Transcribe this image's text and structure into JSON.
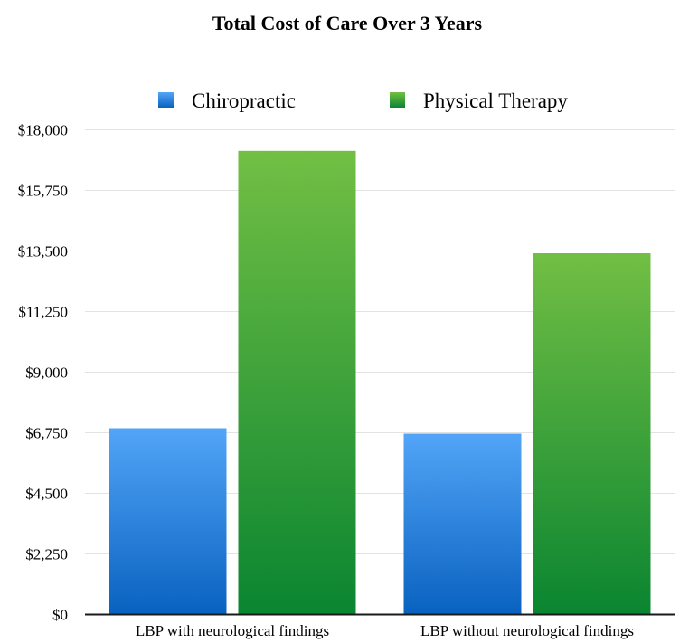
{
  "chart_data": {
    "type": "bar",
    "title": "Total Cost of Care Over 3 Years",
    "xlabel": "",
    "ylabel": "",
    "categories": [
      "LBP with neurological findings",
      "LBP without neurological findings"
    ],
    "series": [
      {
        "name": "Chiropractic",
        "values": [
          6900,
          6700
        ],
        "color_top": "#52a5f7",
        "color_bottom": "#0a62c0"
      },
      {
        "name": "Physical Therapy",
        "values": [
          17200,
          13400
        ],
        "color_top": "#72bf44",
        "color_bottom": "#0a8531"
      }
    ],
    "ylim": [
      0,
      18000
    ],
    "yticks": [
      0,
      2250,
      4500,
      6750,
      9000,
      11250,
      13500,
      15750,
      18000
    ],
    "ytick_labels": [
      "$0",
      "$2,250",
      "$4,500",
      "$6,750",
      "$9,000",
      "$11,250",
      "$13,500",
      "$15,750",
      "$18,000"
    ],
    "grid": true,
    "legend_position": "top-center"
  }
}
